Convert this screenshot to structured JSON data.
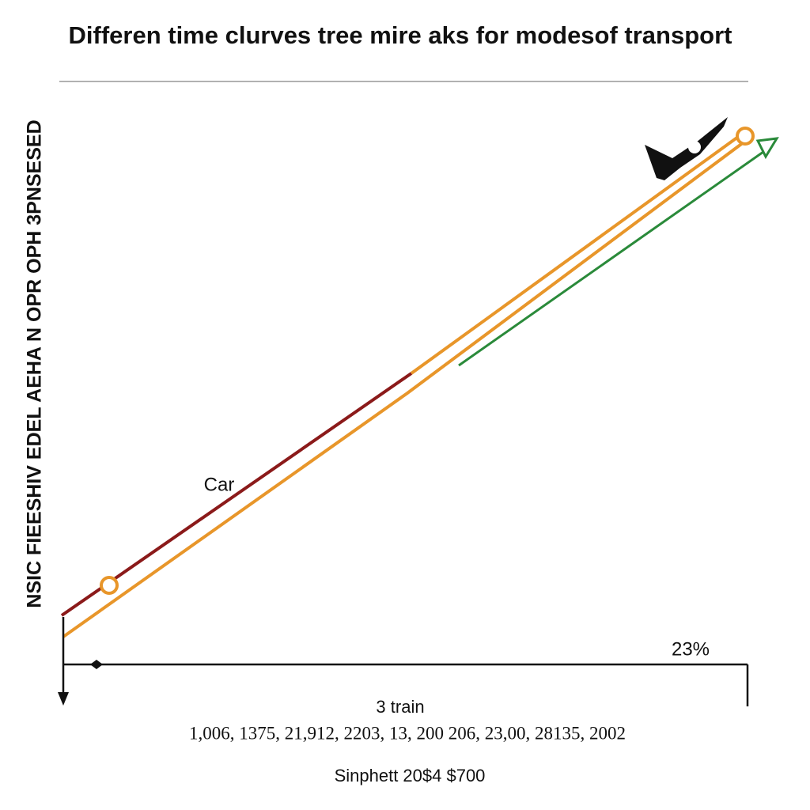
{
  "header": {
    "title": "Differen time clurves tree mire aks for modesof transport"
  },
  "axis": {
    "y_label": "NSIC FIEESHIV EDEL AEHA N OPR OPH 3PNSESED",
    "x_label": "3 train",
    "x_values_text": "1,006,  1375,  21,912,  2203,  13,  200  206,  23,00,  28135,  2002"
  },
  "annotations": {
    "line_label": "Car",
    "corner_label": "23%"
  },
  "footer": {
    "text": "Sinphett 20$4 $700"
  }
}
